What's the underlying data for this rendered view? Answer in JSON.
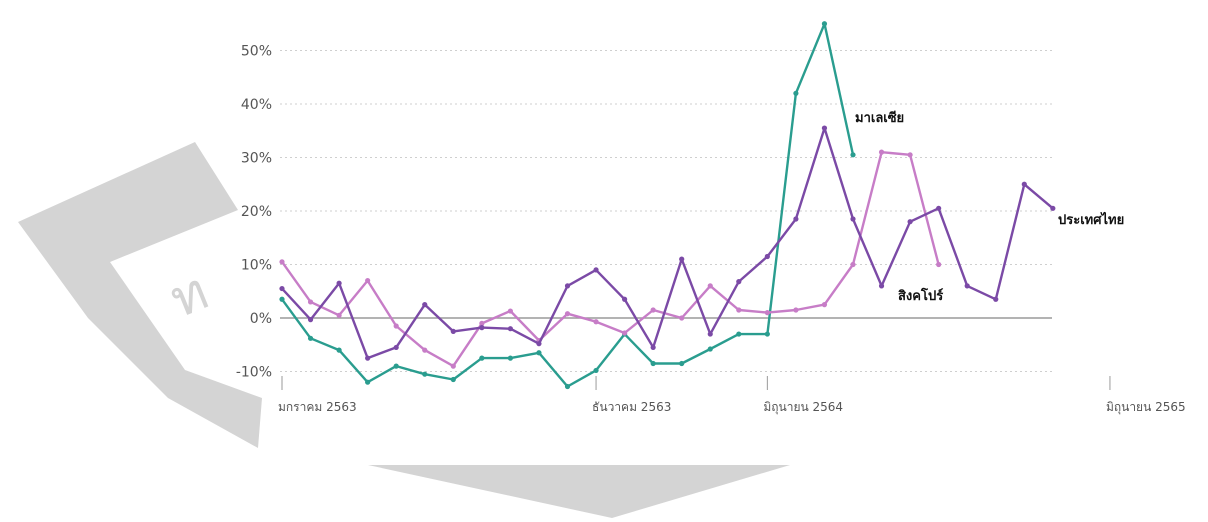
{
  "watermark": {
    "text": "ท",
    "color": "#d4d4d4"
  },
  "chart_data": {
    "type": "line",
    "title": "",
    "xlabel": "",
    "ylabel": "",
    "ylim": [
      -12,
      55
    ],
    "y_ticks": [
      {
        "value": 50,
        "label": "50%"
      },
      {
        "value": 40,
        "label": "40%"
      },
      {
        "value": 30,
        "label": "30%"
      },
      {
        "value": 20,
        "label": "20%"
      },
      {
        "value": 10,
        "label": "10%"
      },
      {
        "value": 0,
        "label": "0%"
      },
      {
        "value": -10,
        "label": "-10%"
      }
    ],
    "x_ticks": [
      {
        "index": 0,
        "label": "มกราคม 2563"
      },
      {
        "index": 11,
        "label": "ธันวาคม 2563"
      },
      {
        "index": 17,
        "label": "มิถุนายน 2564"
      },
      {
        "index": 29,
        "label": "มิถุนายน 2565"
      }
    ],
    "grid": true,
    "legend": "inline labels at line ends",
    "series": [
      {
        "name": "มาเลเซีย",
        "color": "#2a9d8f",
        "values": [
          3.5,
          -3.8,
          -6,
          -12,
          -9,
          -10.5,
          -11.5,
          -7.5,
          -7.5,
          -6.5,
          -12.8,
          -9.8,
          -3,
          -8.5,
          -8.5,
          -5.8,
          -3,
          -3,
          42,
          55,
          30.5
        ]
      },
      {
        "name": "สิงคโปร์",
        "color": "#c77dc7",
        "values": [
          10.5,
          3,
          0.5,
          7,
          -1.5,
          -6,
          -9,
          -1,
          1.3,
          -4.2,
          0.8,
          -0.7,
          -2.8,
          1.5,
          0,
          6,
          1.5,
          1,
          1.5,
          2.5,
          10,
          31,
          30.5,
          10
        ]
      },
      {
        "name": "ประเทศไทย",
        "color": "#7b4aa6",
        "values": [
          5.5,
          -0.3,
          6.5,
          -7.5,
          -5.5,
          2.5,
          -2.5,
          -1.8,
          -2,
          -4.8,
          6,
          9,
          3.5,
          -5.5,
          11,
          -3,
          6.8,
          11.5,
          18.5,
          35.5,
          18.5,
          6,
          18,
          20.5,
          6,
          3.5,
          25,
          20.5
        ]
      }
    ]
  }
}
